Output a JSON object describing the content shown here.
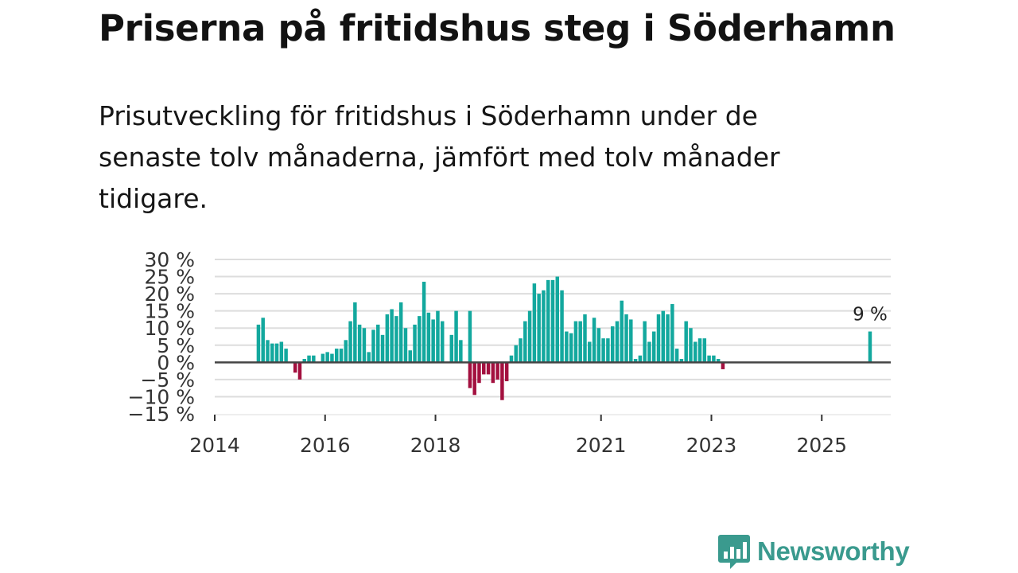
{
  "title": "Priserna på fritidshus steg i Söderhamn",
  "subtitle": "Prisutveckling för fritidshus i Söderhamn under de senaste tolv månaderna, jämfört med tolv månader tidigare.",
  "colors": {
    "positive": "#13a89e",
    "negative": "#a3103f",
    "grid": "#dddddd",
    "zero_line": "#444444",
    "brand": "#3a9a8e"
  },
  "logo": {
    "name": "Newsworthy",
    "icon": "bar-chart-speech-bubble-icon"
  },
  "chart_data": {
    "type": "bar",
    "title": "",
    "xlabel": "",
    "ylabel": "",
    "ylim": [
      -15,
      30
    ],
    "yticks": [
      30,
      25,
      20,
      15,
      10,
      5,
      0,
      -5,
      -10,
      -15
    ],
    "ytick_labels": [
      "30 %",
      "25 %",
      "20 %",
      "15 %",
      "10 %",
      "5 %",
      "0 %",
      "−5 %",
      "−10 %",
      "−15 %"
    ],
    "xlim": [
      "2014-01",
      "2026-04"
    ],
    "xticks": [
      "2014",
      "2016",
      "2018",
      "2021",
      "2023",
      "2025"
    ],
    "series": [
      {
        "name": "Prisutveckling",
        "start": "2014-10",
        "values": [
          11,
          13,
          6.5,
          5.5,
          5.5,
          6,
          4,
          0,
          -3,
          -5,
          1,
          2,
          2,
          0,
          2.5,
          3,
          2.5,
          4,
          4,
          6.5,
          12,
          17.5,
          11,
          10,
          3,
          9.5,
          11,
          8,
          14,
          15.5,
          13.5,
          17.5,
          10,
          3.5,
          11,
          13.5,
          23.5,
          14.5,
          12.5,
          15,
          12,
          0,
          8,
          15,
          6.5,
          0,
          15
        ]
      },
      {
        "name": "Prisutveckling",
        "start": "2018-08",
        "values": [
          -7.5,
          -9.5,
          -6,
          -3.5,
          -3.5,
          -6,
          -5,
          -11,
          -5.5,
          2,
          5,
          7,
          12,
          15,
          23,
          20,
          21,
          24,
          24,
          25,
          21,
          9,
          8.5,
          12,
          12,
          14,
          6,
          13,
          10,
          7,
          7,
          10.5,
          12,
          18,
          14,
          12.5,
          1,
          2,
          12,
          6,
          9,
          14,
          15,
          14,
          17,
          4,
          1,
          12,
          10,
          6,
          7,
          7,
          2,
          2,
          1,
          -2
        ]
      },
      {
        "name": "Prisutveckling",
        "start": "2025-11",
        "values": [
          9
        ]
      }
    ],
    "annotations": [
      {
        "x": "2025-11",
        "y": 9,
        "text": "9 %"
      }
    ]
  }
}
